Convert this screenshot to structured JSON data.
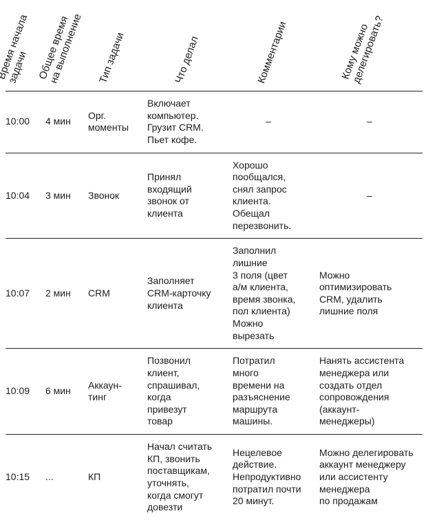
{
  "colors": {
    "background": "#ffffff",
    "text": "#1c1c1c",
    "rule_line": "#222222"
  },
  "table": {
    "headers": [
      "Время начала\nзадачи",
      "Общее время\nна выполнение",
      "Тип задачи",
      "Что делал",
      "Комментарии",
      "Кому можно\nделегировать?"
    ],
    "rows": [
      {
        "time": "10:00",
        "duration": "4 мин",
        "type": "Орг.\nмоменты",
        "action": "Включает\nкомпьютер.\nГрузит CRM.\nПьет кофе.",
        "comment": "–",
        "delegate": "–"
      },
      {
        "time": "10:04",
        "duration": "3 мин",
        "type": "Звонок",
        "action": "Принял\nвходящий\nзвонок от\nклиента",
        "comment": "Хорошо\nпообщался,\nснял запрос\nклиента.\nОбещал\nперезвонить.",
        "delegate": "–"
      },
      {
        "time": "10:07",
        "duration": "2 мин",
        "type": "CRM",
        "action": "Заполняет\nCRM-карточку\nклиента",
        "comment": "Заполнил\nлишние\n3 поля (цвет\nа/м клиента,\nвремя звонка,\nпол клиента)\nМожно\nвырезать",
        "delegate": "Можно\nоптимизировать\nCRM, удалить\nлишние поля"
      },
      {
        "time": "10:09",
        "duration": "6 мин",
        "type": "Аккаун-\nтинг",
        "action": "Позвонил\nклиент,\nспрашивал,\nкогда\nпривезут\nтовар",
        "comment": "Потратил\nмного\nвремени на\nразъяснение\nмаршрута\nмашины.",
        "delegate": "Нанять ассистента\nменеджера или\nсоздать отдел\nсопровождения\n(аккаунт-\nменеджеры)"
      },
      {
        "time": "10:15",
        "duration": "...",
        "type": "КП",
        "action": "Начал считать\nКП, звонить\nпоставщикам,\nуточнять,\nкогда смогут\nдовезти",
        "comment": "Нецелевое\nдействие.\nНепродуктивно\nпотратил почти\n20 минут.",
        "delegate": "Можно делегировать\nаккаунт менеджеру\nили ассистенту\nменеджера\nпо продажам"
      }
    ]
  }
}
